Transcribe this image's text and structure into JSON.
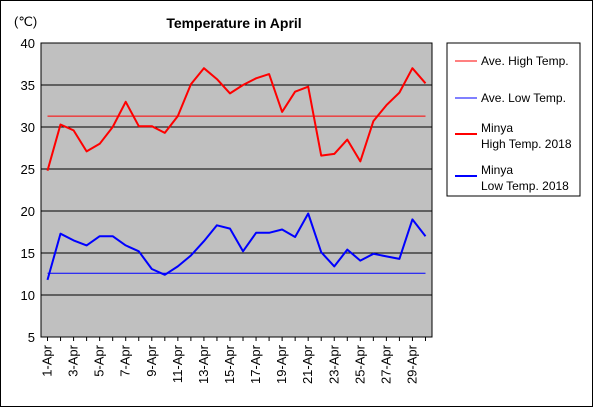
{
  "chart_data": {
    "type": "line",
    "title": "Temperature in April",
    "ylabel": "(℃)",
    "xlabel": "",
    "ylim": [
      5,
      40
    ],
    "yticks": [
      "40",
      "35",
      "30",
      "25",
      "20",
      "15",
      "10",
      "5"
    ],
    "yticks_values": [
      40,
      35,
      30,
      25,
      20,
      15,
      10,
      5
    ],
    "grid": true,
    "legend_position": "right",
    "categories": [
      "1-Apr",
      "2-Apr",
      "3-Apr",
      "4-Apr",
      "5-Apr",
      "6-Apr",
      "7-Apr",
      "8-Apr",
      "9-Apr",
      "10-Apr",
      "11-Apr",
      "12-Apr",
      "13-Apr",
      "14-Apr",
      "15-Apr",
      "16-Apr",
      "17-Apr",
      "18-Apr",
      "19-Apr",
      "20-Apr",
      "21-Apr",
      "22-Apr",
      "23-Apr",
      "24-Apr",
      "25-Apr",
      "26-Apr",
      "27-Apr",
      "28-Apr",
      "29-Apr",
      "30-Apr"
    ],
    "tick_labels": [
      "1-Apr",
      "3-Apr",
      "5-Apr",
      "7-Apr",
      "9-Apr",
      "11-Apr",
      "13-Apr",
      "15-Apr",
      "17-Apr",
      "19-Apr",
      "21-Apr",
      "23-Apr",
      "25-Apr",
      "27-Apr",
      "29-Apr"
    ],
    "series": [
      {
        "name": "Ave. High Temp.",
        "color": "#ff0000",
        "style": "thin",
        "values": [
          31.3,
          31.3,
          31.3,
          31.3,
          31.3,
          31.3,
          31.3,
          31.3,
          31.3,
          31.3,
          31.3,
          31.3,
          31.3,
          31.3,
          31.3,
          31.3,
          31.3,
          31.3,
          31.3,
          31.3,
          31.3,
          31.3,
          31.3,
          31.3,
          31.3,
          31.3,
          31.3,
          31.3,
          31.3,
          31.3
        ]
      },
      {
        "name": "Ave. Low Temp.",
        "color": "#0000ff",
        "style": "thin",
        "values": [
          12.6,
          12.6,
          12.6,
          12.6,
          12.6,
          12.6,
          12.6,
          12.6,
          12.6,
          12.6,
          12.6,
          12.6,
          12.6,
          12.6,
          12.6,
          12.6,
          12.6,
          12.6,
          12.6,
          12.6,
          12.6,
          12.6,
          12.6,
          12.6,
          12.6,
          12.6,
          12.6,
          12.6,
          12.6,
          12.6
        ]
      },
      {
        "name": "Minya High Temp. 2018",
        "legend_lines": [
          "Minya",
          "High Temp. 2018"
        ],
        "color": "#ff0000",
        "style": "thick",
        "values": [
          24.8,
          30.3,
          29.6,
          27.1,
          28.0,
          30.0,
          33.0,
          30.1,
          30.1,
          29.3,
          31.3,
          35.1,
          37.0,
          35.7,
          34.0,
          35.0,
          35.8,
          36.3,
          31.8,
          34.2,
          34.8,
          26.6,
          26.8,
          28.5,
          25.9,
          30.7,
          32.6,
          34.1,
          37.0,
          35.2
        ]
      },
      {
        "name": "Minya Low Temp. 2018",
        "legend_lines": [
          "Minya",
          "Low Temp. 2018"
        ],
        "color": "#0000ff",
        "style": "thick",
        "values": [
          11.8,
          17.3,
          16.5,
          15.9,
          17.0,
          17.0,
          15.9,
          15.2,
          13.1,
          12.4,
          13.4,
          14.7,
          16.4,
          18.3,
          17.9,
          15.2,
          17.4,
          17.4,
          17.8,
          16.9,
          19.7,
          15.1,
          13.4,
          15.4,
          14.1,
          14.9,
          14.6,
          14.3,
          19.0,
          17.0
        ]
      }
    ]
  }
}
